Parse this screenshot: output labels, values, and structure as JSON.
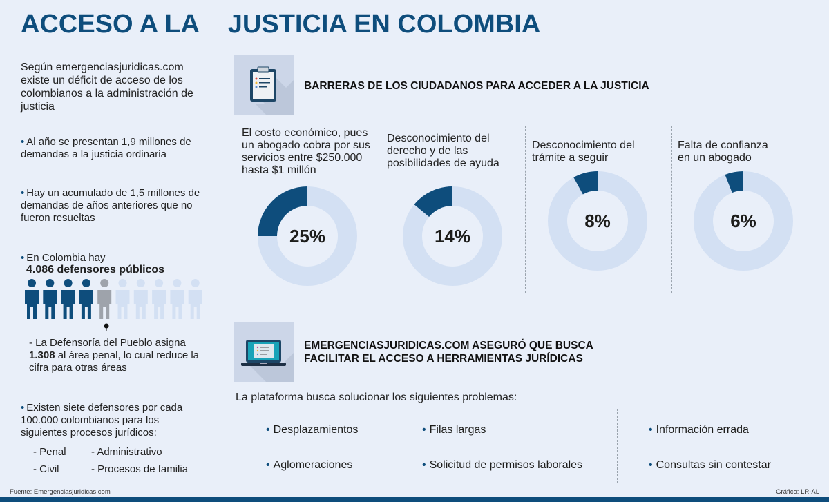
{
  "title": "ACCESO A LA    JUSTICIA EN COLOMBIA",
  "intro": "Según emergenciasjuridicas.com existe un déficit de acceso de los colombianos a la administración de justicia",
  "facts": [
    "Al año se presentan 1,9 millones de demandas a la justicia ordinaria",
    "Hay un acumulado de 1,5 millones de demandas de años anteriores que no fueron resueltas"
  ],
  "defensores": {
    "prefix": "En Colombia hay",
    "bold": "4.086 defensores públicos",
    "figures_dark": 4,
    "figures_gray": 1,
    "figures_total": 10,
    "note_prefix": "- La Defensoría del Pueblo asigna",
    "note_bold": "1.308",
    "note_suffix": " al área penal, lo cual reduce la cifra para otras áreas"
  },
  "siete": {
    "text": "Existen siete defensores por cada 100.000 colombianos para los siguientes procesos jurídicos:",
    "items": [
      "- Penal",
      "- Administrativo",
      "- Civil",
      "- Procesos de familia"
    ]
  },
  "barreras": {
    "title": "BARRERAS DE LOS CIUDADANOS PARA ACCEDER A LA JUSTICIA",
    "icon": "clipboard-icon"
  },
  "chart_data": {
    "type": "pie",
    "style": "donut",
    "categories": [
      "El costo económico, pues un abogado cobra por sus servicios entre $250.000 hasta $1 millón",
      "Desconocimiento del derecho y de las posibilidades de ayuda",
      "Desconocimiento del trámite a seguir",
      "Falta de confianza en un abogado"
    ],
    "values": [
      25,
      14,
      8,
      6
    ],
    "labels": [
      "25%",
      "14%",
      "8%",
      "6%"
    ],
    "colors": {
      "value": "#0e4d7c",
      "rest": "#d3e0f3"
    }
  },
  "plataforma": {
    "title_line1": "EMERGENCIASJURIDICAS.COM ASEGURÓ QUE BUSCA",
    "title_line2": "FACILITAR EL ACCESO A HERRAMIENTAS JURÍDICAS",
    "icon": "laptop-icon",
    "subtitle": "La plataforma busca solucionar los siguientes problemas:",
    "problems": [
      "Desplazamientos",
      "Filas largas",
      "Información errada",
      "Aglomeraciones",
      "Solicitud de permisos laborales",
      "Consultas sin contestar"
    ]
  },
  "footer": {
    "source": "Fuente: Emergenciasjuridicas.com",
    "credit": "Gráfico: LR-AL"
  },
  "colors": {
    "accent": "#0e4d7c",
    "background": "#e9eff9"
  }
}
